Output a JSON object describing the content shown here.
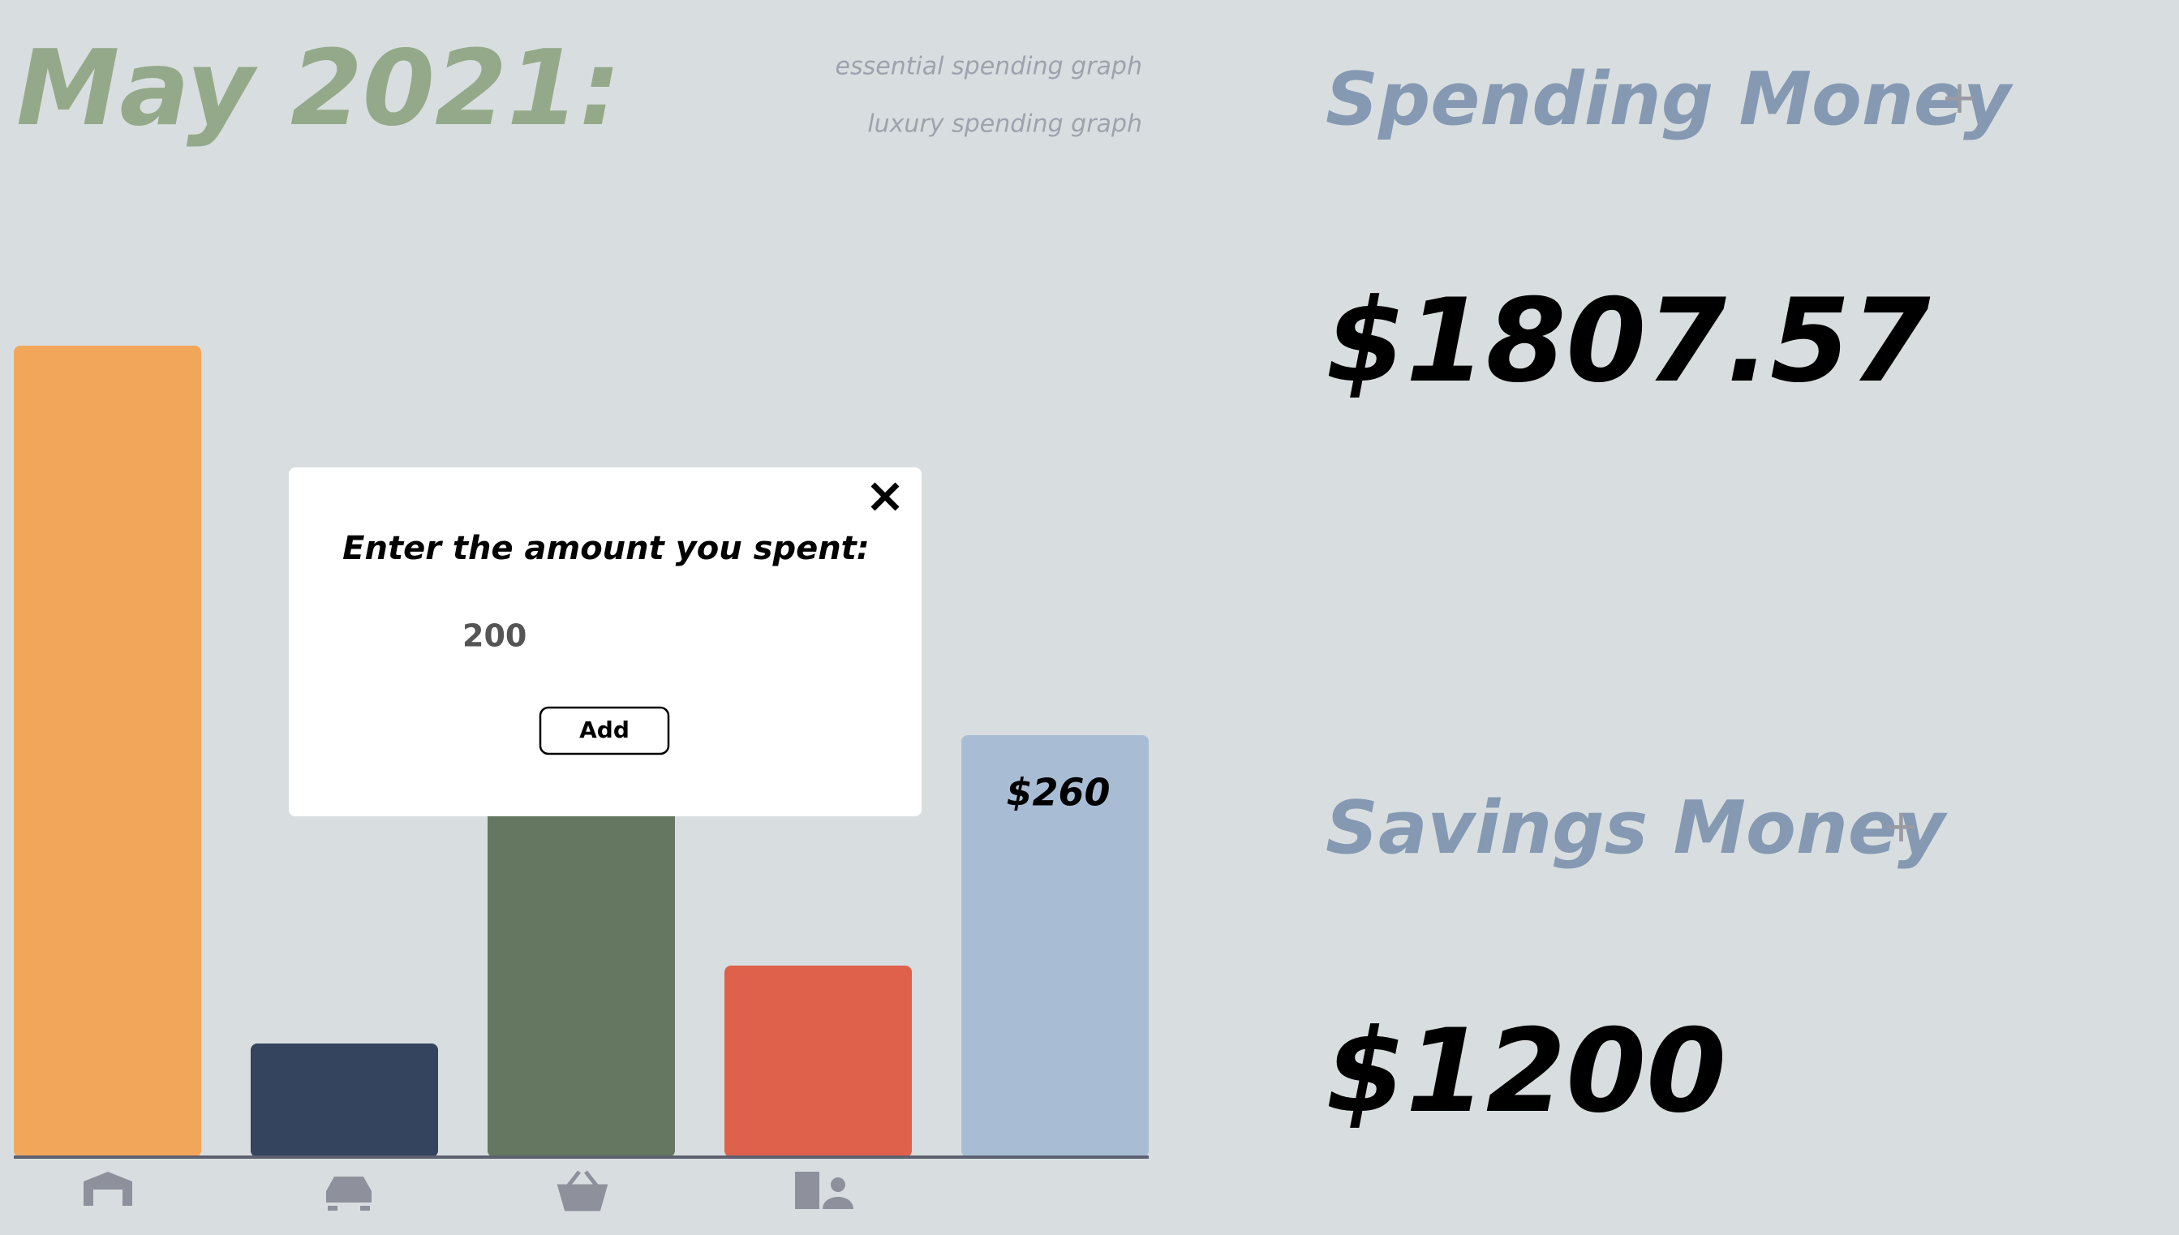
{
  "header": {
    "title": "May 2021:",
    "links": [
      "essential spending graph",
      "luxury spending graph"
    ]
  },
  "chart_data": {
    "type": "bar",
    "values": [
      500,
      70,
      400,
      118,
      260
    ],
    "colors": [
      "#f2a65a",
      "#34435e",
      "#657760",
      "#df604b",
      "#a8bdd4"
    ],
    "value_labels": [
      null,
      null,
      null,
      null,
      "$260"
    ],
    "ylim": [
      0,
      700
    ]
  },
  "summary": {
    "spending": {
      "label": "Spending Money",
      "action": "+",
      "amount": "$1807.57"
    },
    "savings": {
      "label": "Savings Money",
      "action": "+",
      "amount": "$1200"
    }
  },
  "modal": {
    "prompt": "Enter the amount you spent:",
    "input": "200",
    "button": "Add"
  }
}
